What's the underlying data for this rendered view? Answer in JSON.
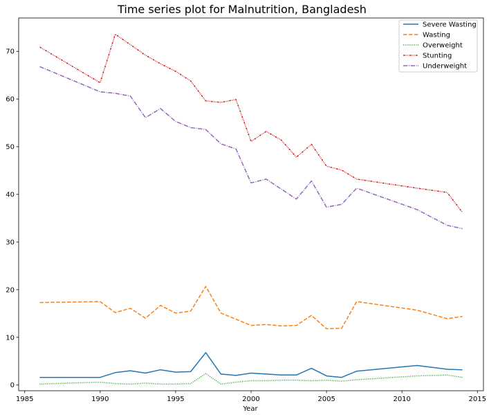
{
  "chart_data": {
    "type": "line",
    "title": "Time series plot for Malnutrition, Bangladesh",
    "xlabel": "Year",
    "ylabel": "",
    "xlim": [
      1984.6,
      2015.4
    ],
    "ylim": [
      -1.2,
      77.0
    ],
    "xticks": [
      1985,
      1990,
      1995,
      2000,
      2005,
      2010,
      2015
    ],
    "yticks": [
      0,
      10,
      20,
      30,
      40,
      50,
      60,
      70
    ],
    "grid": false,
    "legend_position": "top-right",
    "series": [
      {
        "name": "Severe Wasting",
        "color": "#1f77b4",
        "dash": "solid",
        "x": [
          1986,
          1990,
          1991,
          1992,
          1993,
          1994,
          1995,
          1996,
          1997,
          1998,
          1999,
          2000,
          2001,
          2002,
          2003,
          2004,
          2005,
          2006,
          2007,
          2011,
          2013,
          2014
        ],
        "y": [
          1.6,
          1.6,
          2.6,
          3.0,
          2.5,
          3.2,
          2.7,
          2.8,
          6.8,
          2.3,
          2.0,
          2.5,
          2.3,
          2.1,
          2.1,
          3.5,
          1.9,
          1.6,
          2.9,
          4.1,
          3.3,
          3.2
        ]
      },
      {
        "name": "Wasting",
        "color": "#ff7f0e",
        "dash": "dashed",
        "x": [
          1986,
          1990,
          1991,
          1992,
          1993,
          1994,
          1995,
          1996,
          1997,
          1998,
          1999,
          2000,
          2001,
          2002,
          2003,
          2004,
          2005,
          2006,
          2007,
          2011,
          2013,
          2014
        ],
        "y": [
          17.3,
          17.5,
          15.2,
          16.1,
          14.0,
          16.7,
          15.1,
          15.5,
          20.7,
          15.1,
          13.8,
          12.5,
          12.7,
          12.4,
          12.5,
          14.6,
          11.8,
          11.9,
          17.5,
          15.7,
          13.9,
          14.4
        ]
      },
      {
        "name": "Overweight",
        "color": "#2ca02c",
        "dash": "dotted",
        "x": [
          1986,
          1990,
          1991,
          1992,
          1993,
          1994,
          1995,
          1996,
          1997,
          1998,
          1999,
          2000,
          2001,
          2002,
          2003,
          2004,
          2005,
          2006,
          2007,
          2011,
          2013,
          2014
        ],
        "y": [
          0.2,
          0.6,
          0.3,
          0.2,
          0.4,
          0.2,
          0.2,
          0.3,
          2.4,
          0.2,
          0.6,
          0.9,
          0.9,
          1.0,
          1.0,
          0.9,
          1.0,
          0.8,
          1.1,
          1.9,
          2.1,
          1.6
        ]
      },
      {
        "name": "Stunting",
        "color": "#d62728",
        "dash": "dashdotdot",
        "x": [
          1986,
          1990,
          1991,
          1992,
          1993,
          1994,
          1995,
          1996,
          1997,
          1998,
          1999,
          2000,
          2001,
          2002,
          2003,
          2004,
          2005,
          2006,
          2007,
          2011,
          2013,
          2014
        ],
        "y": [
          70.9,
          63.4,
          73.6,
          71.4,
          69.2,
          67.4,
          65.8,
          63.8,
          59.6,
          59.3,
          59.9,
          51.1,
          53.2,
          51.4,
          47.8,
          50.5,
          45.9,
          45.1,
          43.2,
          41.3,
          40.4,
          36.2
        ]
      },
      {
        "name": "Underweight",
        "color": "#9467bd",
        "dash": "dashdot",
        "x": [
          1986,
          1990,
          1991,
          1992,
          1993,
          1994,
          1995,
          1996,
          1997,
          1998,
          1999,
          2000,
          2001,
          2002,
          2003,
          2004,
          2005,
          2006,
          2007,
          2011,
          2013,
          2014
        ],
        "y": [
          66.8,
          61.5,
          61.2,
          60.6,
          56.1,
          58.0,
          55.3,
          54.0,
          53.6,
          50.6,
          49.5,
          42.4,
          43.2,
          41.1,
          39.0,
          42.8,
          37.3,
          37.9,
          41.3,
          36.8,
          33.5,
          32.8
        ]
      }
    ]
  }
}
